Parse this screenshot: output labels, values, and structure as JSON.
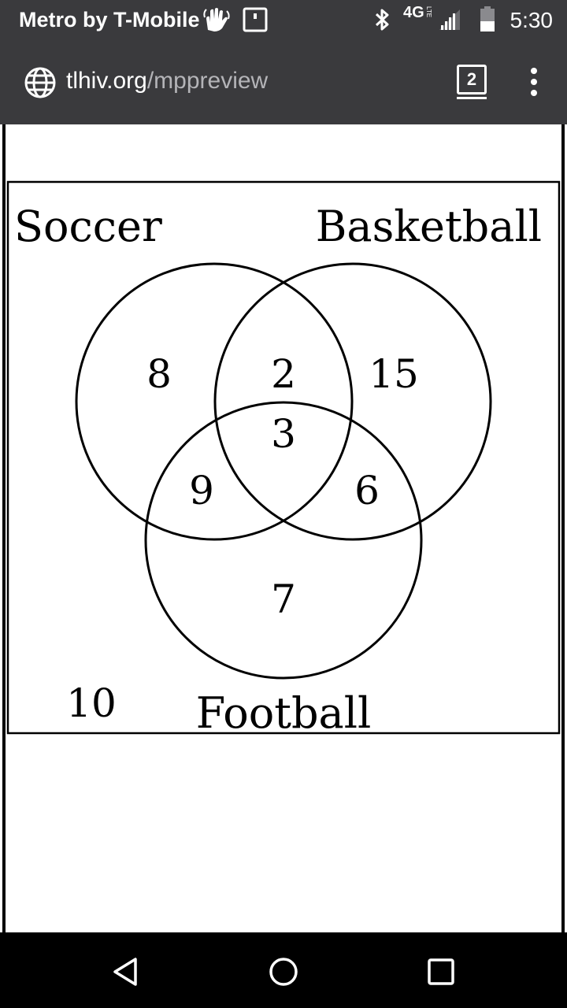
{
  "status_bar": {
    "carrier": "Metro by T-Mobile",
    "network": "4G",
    "network_sub": "LTE",
    "time": "5:30"
  },
  "browser": {
    "url_host": "tlhiv.org",
    "url_path": "/mppreview",
    "tab_count": "2"
  },
  "venn": {
    "sets": {
      "a": "Soccer",
      "b": "Basketball",
      "c": "Football"
    },
    "regions": {
      "a_only": "8",
      "a_b": "2",
      "b_only": "15",
      "a_b_c": "3",
      "a_c": "9",
      "b_c": "6",
      "c_only": "7",
      "outside": "10"
    }
  },
  "colors": {
    "chrome_bg": "#3a3a3d",
    "url_path": "#b4b4b8",
    "nav_bg": "#000000"
  }
}
